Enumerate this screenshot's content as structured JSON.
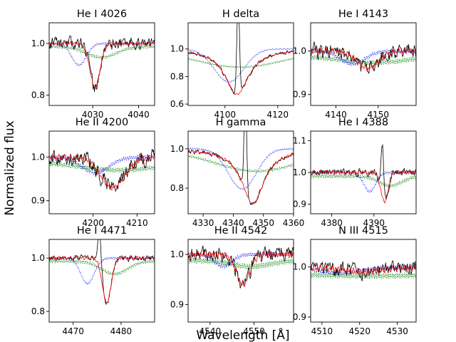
{
  "figure": {
    "xlabel": "Wavelength [Å]",
    "ylabel": "Normalized flux",
    "series_colors": {
      "observed": "#000000",
      "model": "#ff0000",
      "component_1": "#0000ff",
      "component_2": "#008000"
    }
  },
  "chart_data": [
    {
      "type": "line",
      "title": "He I 4026",
      "xlim": [
        4020.5,
        4043.5
      ],
      "ylim": [
        0.76,
        1.08
      ],
      "xticks": [
        4030,
        4040
      ],
      "yticks": [
        0.8,
        1.0
      ],
      "ytick_labels": [
        "0.8",
        "1.0"
      ],
      "center": 4030.5,
      "width": 1.1,
      "depth": 0.17,
      "comp_center": 4027.0,
      "comp_depth": 0.07,
      "noise": 0.025,
      "seed": 11,
      "emission": null
    },
    {
      "type": "line",
      "title": "H delta",
      "xlim": [
        4086,
        4126
      ],
      "ylim": [
        0.59,
        1.19
      ],
      "xticks": [
        4100,
        4120
      ],
      "yticks": [
        0.6,
        0.8,
        1.0
      ],
      "ytick_labels": [
        "0.6",
        "0.8",
        "1.0"
      ],
      "center": 4104.5,
      "width": 5.5,
      "depth": 0.33,
      "comp_center": 4101.5,
      "comp_depth": 0.2,
      "noise": 0.012,
      "seed": 23,
      "emission": {
        "center": 4105.0,
        "width": 0.5,
        "height": 0.7
      }
    },
    {
      "type": "line",
      "title": "He I 4143",
      "xlim": [
        4134,
        4159
      ],
      "ylim": [
        0.875,
        1.065
      ],
      "xticks": [
        4140,
        4150
      ],
      "yticks": [
        0.9,
        1.0
      ],
      "ytick_labels": [
        "0.9",
        "1.0"
      ],
      "center": 4147.5,
      "width": 2.5,
      "depth": 0.04,
      "comp_center": 4144.0,
      "comp_depth": 0.025,
      "noise": 0.018,
      "seed": 37,
      "emission": null
    },
    {
      "type": "line",
      "title": "He II 4200",
      "xlim": [
        4190,
        4214
      ],
      "ylim": [
        0.87,
        1.06
      ],
      "xticks": [
        4200,
        4210
      ],
      "yticks": [
        0.9,
        1.0
      ],
      "ytick_labels": [
        "0.9",
        "1.0"
      ],
      "center": 4204.5,
      "width": 2.8,
      "depth": 0.07,
      "comp_center": 4200.5,
      "comp_depth": 0.03,
      "noise": 0.02,
      "seed": 41,
      "emission": null
    },
    {
      "type": "line",
      "title": "H gamma",
      "xlim": [
        4325,
        4360
      ],
      "ylim": [
        0.67,
        1.09
      ],
      "xticks": [
        4330,
        4340,
        4350,
        4360
      ],
      "yticks": [
        0.8,
        1.0
      ],
      "ytick_labels": [
        "0.8",
        "1.0"
      ],
      "center": 4346.5,
      "width": 4.5,
      "depth": 0.28,
      "comp_center": 4343.0,
      "comp_depth": 0.17,
      "noise": 0.01,
      "seed": 53,
      "emission": {
        "center": 4344.0,
        "width": 0.4,
        "height": 0.55
      }
    },
    {
      "type": "line",
      "title": "He I 4388",
      "xlim": [
        4375,
        4400
      ],
      "ylim": [
        0.87,
        1.13
      ],
      "xticks": [
        4380,
        4390
      ],
      "yticks": [
        0.9,
        1.0,
        1.1
      ],
      "ytick_labels": [
        "0.9",
        "1.0",
        "1.1"
      ],
      "center": 4392.5,
      "width": 0.9,
      "depth": 0.09,
      "comp_center": 4389.0,
      "comp_depth": 0.05,
      "noise": 0.012,
      "seed": 67,
      "emission": {
        "center": 4392.0,
        "width": 0.3,
        "height": 0.16
      }
    },
    {
      "type": "line",
      "title": "He I 4471",
      "xlim": [
        4465,
        4487
      ],
      "ylim": [
        0.76,
        1.07
      ],
      "xticks": [
        4470,
        4480
      ],
      "yticks": [
        0.8,
        1.0
      ],
      "ytick_labels": [
        "0.8",
        "1.0"
      ],
      "center": 4477.0,
      "width": 0.9,
      "depth": 0.17,
      "comp_center": 4473.0,
      "comp_depth": 0.08,
      "noise": 0.01,
      "seed": 71,
      "emission": {
        "center": 4475.5,
        "width": 0.35,
        "height": 0.14
      }
    },
    {
      "type": "line",
      "title": "He II 4542",
      "xlim": [
        4535,
        4559
      ],
      "ylim": [
        0.865,
        1.03
      ],
      "xticks": [
        4540,
        4550
      ],
      "yticks": [
        0.9,
        1.0
      ],
      "ytick_labels": [
        "0.9",
        "1.0"
      ],
      "center": 4547.5,
      "width": 1.5,
      "depth": 0.06,
      "comp_center": 4543.0,
      "comp_depth": 0.02,
      "noise": 0.015,
      "seed": 83,
      "emission": null
    },
    {
      "type": "line",
      "title": "N III 4515",
      "xlim": [
        4507,
        4535
      ],
      "ylim": [
        0.89,
        1.055
      ],
      "xticks": [
        4510,
        4520,
        4530
      ],
      "yticks": [
        0.9,
        1.0
      ],
      "ytick_labels": [
        "0.9",
        "1.0"
      ],
      "center": 4521.0,
      "width": 6.0,
      "depth": 0.01,
      "comp_center": 4515.0,
      "comp_depth": 0.01,
      "noise": 0.015,
      "seed": 97,
      "emission": null
    }
  ]
}
